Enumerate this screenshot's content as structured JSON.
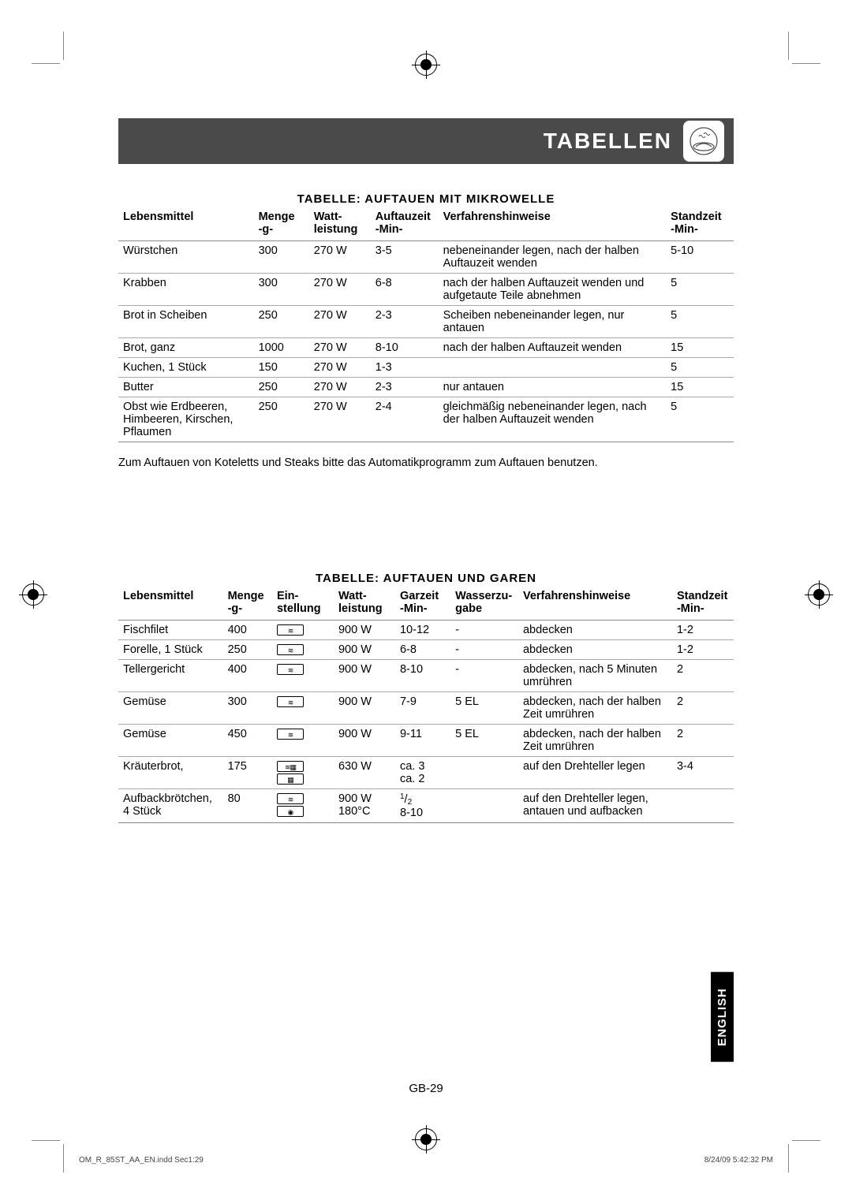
{
  "header": {
    "title": "TABELLEN",
    "icon_name": "microwave-icon"
  },
  "lang_tab": "ENGLISH",
  "page_number": "GB-29",
  "footer": {
    "left": "OM_R_85ST_AA_EN.indd   Sec1:29",
    "right": "8/24/09   5:42:32 PM"
  },
  "table1": {
    "caption": "TABELLE: AUFTAUEN MIT MIKROWELLE",
    "columns": [
      {
        "h1": "Lebensmittel",
        "h2": ""
      },
      {
        "h1": "Menge",
        "h2": "-g-"
      },
      {
        "h1": "Watt-",
        "h2": "leistung"
      },
      {
        "h1": "Auftauzeit",
        "h2": "-Min-"
      },
      {
        "h1": "Verfahrenshinweise",
        "h2": ""
      },
      {
        "h1": "Standzeit",
        "h2": "-Min-"
      }
    ],
    "rows": [
      {
        "food": "Würstchen",
        "qty": "300",
        "watt": "270 W",
        "time": "3-5",
        "proc": "nebeneinander legen, nach der halben Auftauzeit wenden",
        "stand": "5-10"
      },
      {
        "food": "Krabben",
        "qty": "300",
        "watt": "270 W",
        "time": "6-8",
        "proc": "nach der halben Auftauzeit wenden und aufgetaute Teile abnehmen",
        "stand": "5"
      },
      {
        "food": "Brot in Scheiben",
        "qty": "250",
        "watt": "270 W",
        "time": "2-3",
        "proc": "Scheiben nebeneinander legen, nur antauen",
        "stand": "5"
      },
      {
        "food": "Brot, ganz",
        "qty": "1000",
        "watt": "270 W",
        "time": "8-10",
        "proc": "nach der halben Auftauzeit wenden",
        "stand": "15"
      },
      {
        "food": "Kuchen, 1 Stück",
        "qty": "150",
        "watt": "270 W",
        "time": "1-3",
        "proc": "",
        "stand": "5"
      },
      {
        "food": "Butter",
        "qty": "250",
        "watt": "270 W",
        "time": "2-3",
        "proc": "nur antauen",
        "stand": "15"
      },
      {
        "food": "Obst wie Erdbeeren, Himbeeren, Kirschen, Pflaumen",
        "qty": "250",
        "watt": "270 W",
        "time": "2-4",
        "proc": "gleichmäßig nebeneinander legen, nach der halben Auftauzeit wenden",
        "stand": "5"
      }
    ],
    "note": "Zum Auftauen von Koteletts und Steaks bitte das Automatikprogramm zum Auftauen benutzen."
  },
  "table2": {
    "caption": "TABELLE: AUFTAUEN UND GAREN",
    "columns": [
      {
        "h1": "Lebensmittel",
        "h2": ""
      },
      {
        "h1": "Menge",
        "h2": "-g-"
      },
      {
        "h1": "Ein-",
        "h2": "stellung"
      },
      {
        "h1": "Watt-",
        "h2": "leistung"
      },
      {
        "h1": "Garzeit",
        "h2": "-Min-"
      },
      {
        "h1": "Wasserzu-",
        "h2": "gabe"
      },
      {
        "h1": "Verfahrenshinweise",
        "h2": ""
      },
      {
        "h1": "Standzeit",
        "h2": "-Min-"
      }
    ],
    "rows": [
      {
        "food": "Fischfilet",
        "qty": "400",
        "settings": [
          "wave"
        ],
        "watt": [
          "900 W"
        ],
        "time": [
          "10-12"
        ],
        "water": "-",
        "proc": "abdecken",
        "stand": "1-2"
      },
      {
        "food": "Forelle, 1 Stück",
        "qty": "250",
        "settings": [
          "wave"
        ],
        "watt": [
          "900 W"
        ],
        "time": [
          "6-8"
        ],
        "water": "-",
        "proc": "abdecken",
        "stand": "1-2"
      },
      {
        "food": "Tellergericht",
        "qty": "400",
        "settings": [
          "wave"
        ],
        "watt": [
          "900 W"
        ],
        "time": [
          "8-10"
        ],
        "water": "-",
        "proc": "abdecken, nach 5 Minuten umrühren",
        "stand": "2"
      },
      {
        "food": "Gemüse",
        "qty": "300",
        "settings": [
          "wave"
        ],
        "watt": [
          "900 W"
        ],
        "time": [
          "7-9"
        ],
        "water": "5 EL",
        "proc": "abdecken, nach der halben Zeit umrühren",
        "stand": "2"
      },
      {
        "food": "Gemüse",
        "qty": "450",
        "settings": [
          "wave"
        ],
        "watt": [
          "900 W"
        ],
        "time": [
          "9-11"
        ],
        "water": "5 EL",
        "proc": "abdecken, nach der halben Zeit umrühren",
        "stand": "2"
      },
      {
        "food": "Kräuterbrot,",
        "qty": "175",
        "settings": [
          "grill-wave",
          "grill"
        ],
        "watt": [
          "630 W",
          ""
        ],
        "time": [
          "ca. 3",
          "ca. 2"
        ],
        "water": "",
        "proc": "auf den Drehteller legen",
        "stand": "3-4"
      },
      {
        "food": "Aufbackbrötchen, 4 Stück",
        "qty": "80",
        "settings": [
          "wave",
          "conv"
        ],
        "watt": [
          "900 W",
          "180°C"
        ],
        "time": [
          "1/2",
          "8-10"
        ],
        "water": "",
        "proc": "auf den Drehteller legen, antauen und aufbacken",
        "stand": ""
      }
    ]
  },
  "icons": {
    "wave": "≋",
    "grill-wave": "≋▦",
    "grill": "▦",
    "conv": "◉"
  },
  "style": {
    "header_bg": "#4a4a4a",
    "header_fg": "#ffffff",
    "border": "#888888",
    "row_border": "#aaaaaa",
    "lang_bg": "#000000",
    "lang_fg": "#ffffff",
    "font_body": 14.5,
    "font_caption": 15,
    "font_header_title": 28
  }
}
